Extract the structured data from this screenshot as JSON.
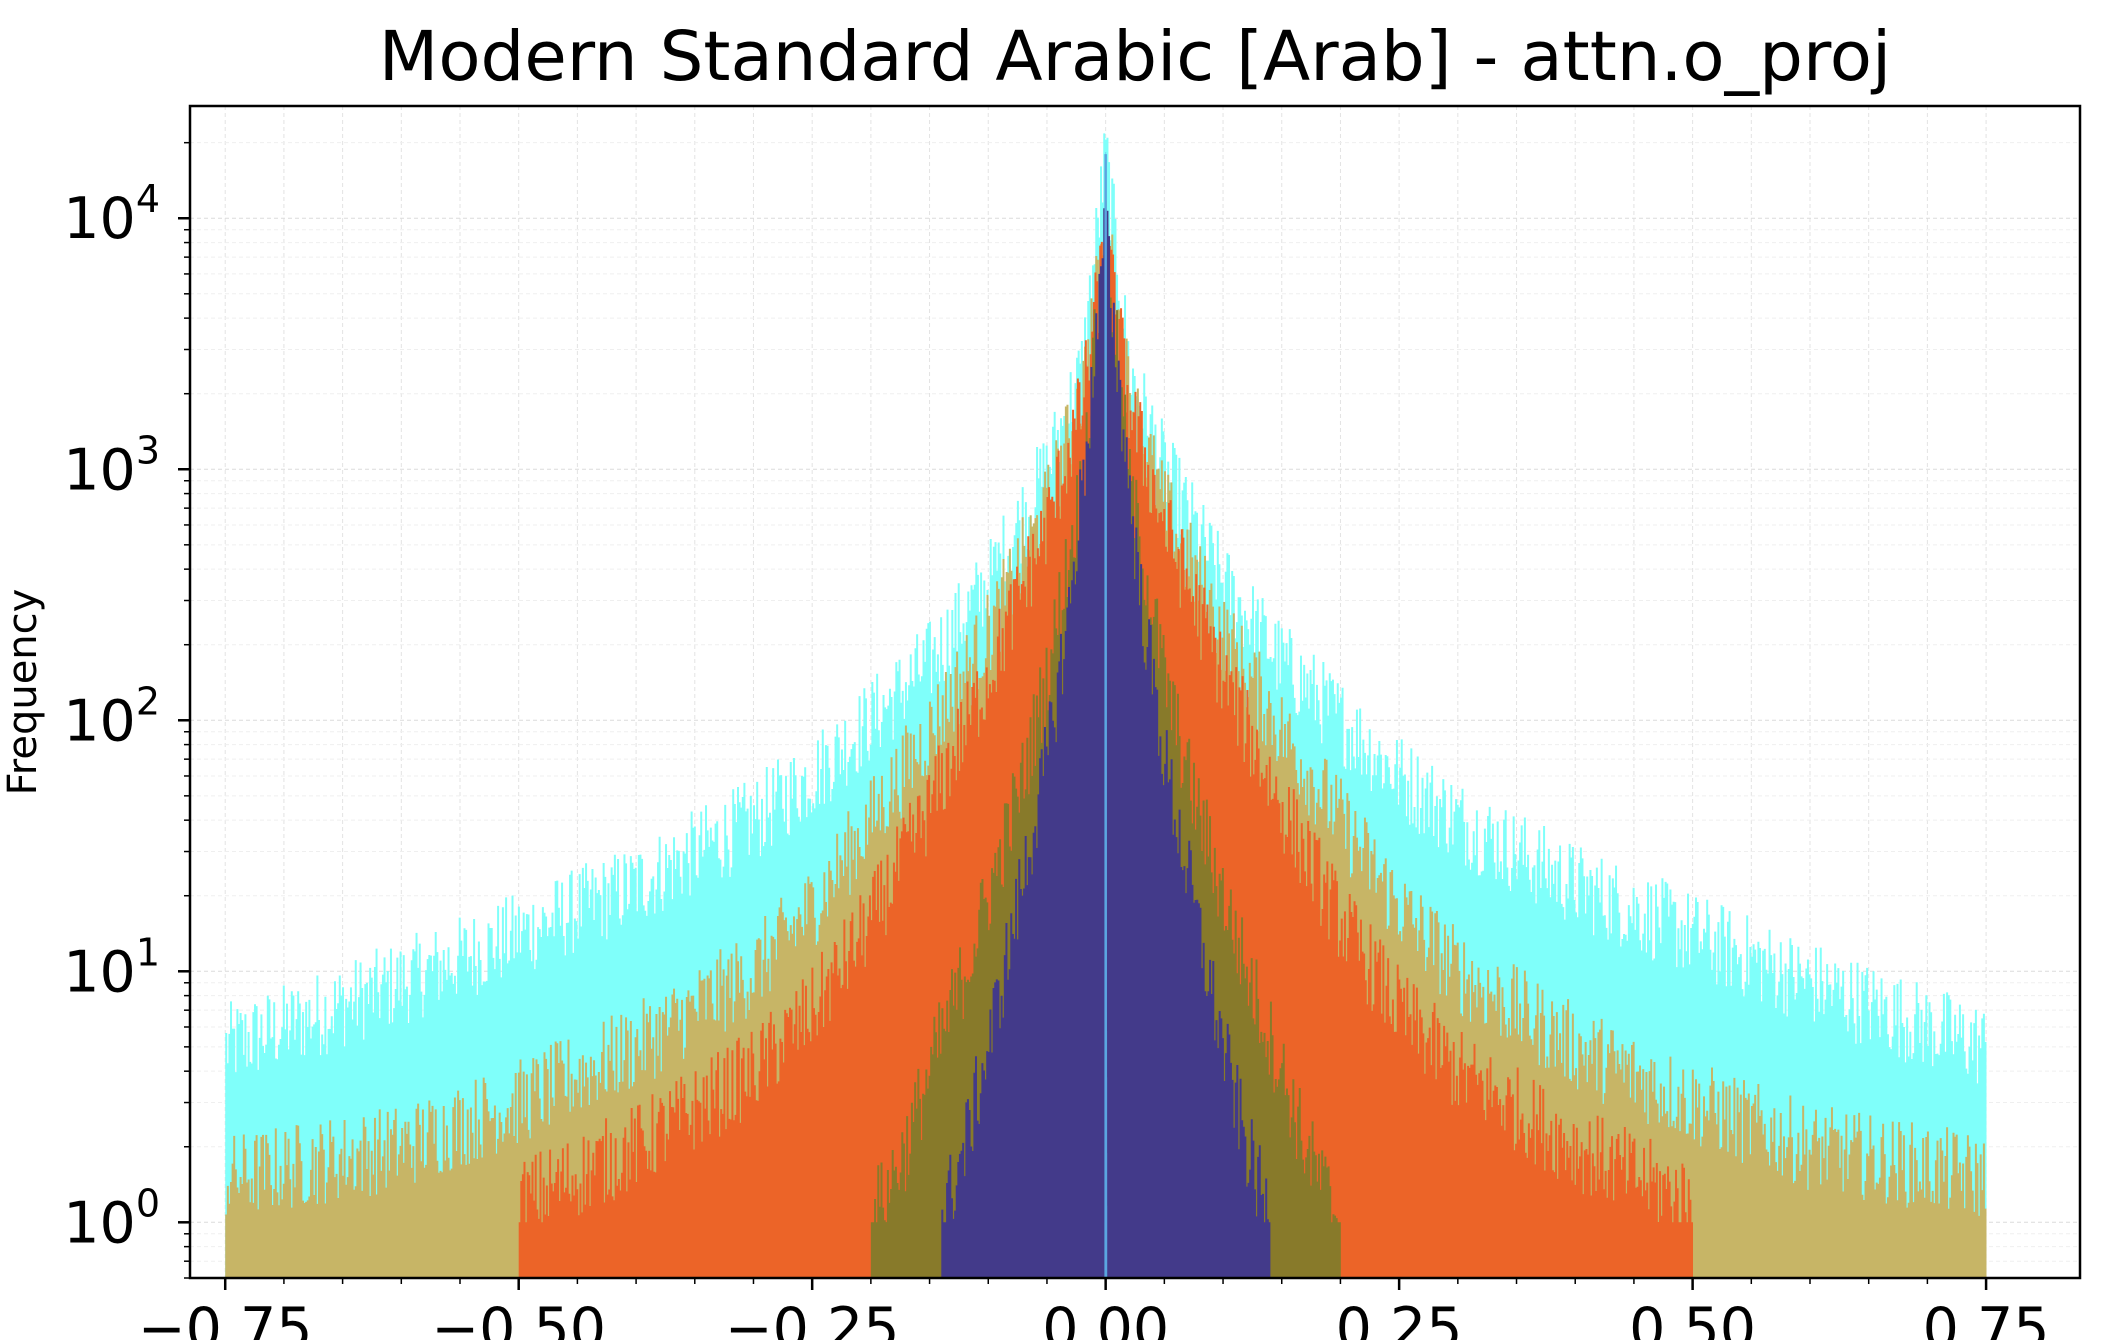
{
  "chart_data": {
    "type": "histogram",
    "title": "Modern Standard Arabic [Arab] - attn.o_proj",
    "xlabel": "",
    "ylabel": "Frequency",
    "x_scale": "linear",
    "y_scale": "log",
    "xlim": [
      -0.78,
      0.83
    ],
    "ylim": [
      0.6,
      28000
    ],
    "grid": true,
    "legend": false,
    "x_ticks": [
      {
        "value": -0.75,
        "label": "−0.75"
      },
      {
        "value": -0.5,
        "label": "−0.50"
      },
      {
        "value": -0.25,
        "label": "−0.25"
      },
      {
        "value": 0.0,
        "label": "0.00"
      },
      {
        "value": 0.25,
        "label": "0.25"
      },
      {
        "value": 0.5,
        "label": "0.50"
      },
      {
        "value": 0.75,
        "label": "0.75"
      }
    ],
    "y_ticks": [
      {
        "value": 1,
        "base": "10",
        "exp": "0"
      },
      {
        "value": 10,
        "base": "10",
        "exp": "1"
      },
      {
        "value": 100,
        "base": "10",
        "exp": "2"
      },
      {
        "value": 1000,
        "base": "10",
        "exp": "3"
      },
      {
        "value": 10000,
        "base": "10",
        "exp": "4"
      }
    ],
    "series": [
      {
        "color": "#7ffffa",
        "opacity": 1.0,
        "x": [
          -0.75,
          -0.7,
          -0.6,
          -0.5,
          -0.4,
          -0.3,
          -0.25,
          -0.2,
          -0.15,
          -0.1,
          -0.05,
          -0.02,
          0.0,
          0.02,
          0.05,
          0.1,
          0.15,
          0.2,
          0.25,
          0.3,
          0.4,
          0.5,
          0.6,
          0.7,
          0.75
        ],
        "y": [
          5,
          6,
          9,
          14,
          22,
          40,
          60,
          100,
          170,
          350,
          1000,
          2500,
          18000,
          2500,
          1000,
          350,
          170,
          100,
          60,
          40,
          22,
          14,
          9,
          6,
          5
        ]
      },
      {
        "color": "#c7b566",
        "opacity": 1.0,
        "x": [
          -0.75,
          -0.6,
          -0.5,
          -0.4,
          -0.3,
          -0.25,
          -0.2,
          -0.15,
          -0.1,
          -0.05,
          -0.02,
          0.0,
          0.02,
          0.05,
          0.1,
          0.15,
          0.2,
          0.25,
          0.3,
          0.4,
          0.5,
          0.6,
          0.75
        ],
        "y": [
          1.5,
          2,
          3,
          5,
          10,
          18,
          40,
          90,
          220,
          700,
          2000,
          9000,
          2000,
          700,
          220,
          90,
          40,
          18,
          10,
          5,
          3,
          2,
          1.5
        ]
      },
      {
        "color": "#ec6428",
        "opacity": 1.0,
        "x": [
          -0.5,
          -0.4,
          -0.3,
          -0.25,
          -0.2,
          -0.15,
          -0.1,
          -0.05,
          -0.02,
          0.0,
          0.02,
          0.05,
          0.1,
          0.15,
          0.2,
          0.25,
          0.3,
          0.4,
          0.5
        ],
        "y": [
          1.2,
          2,
          4,
          7,
          16,
          45,
          150,
          600,
          1800,
          8000,
          1800,
          600,
          150,
          45,
          16,
          7,
          4,
          2,
          1.2
        ]
      },
      {
        "color": "#887a2a",
        "opacity": 1.0,
        "x": [
          -0.2,
          -0.17,
          -0.15,
          -0.12,
          -0.1,
          -0.07,
          -0.05,
          -0.02,
          0.0,
          0.02,
          0.05,
          0.07,
          0.1,
          0.12,
          0.15,
          0.17,
          0.2
        ],
        "y": [
          1,
          2,
          4,
          10,
          20,
          60,
          150,
          900,
          8500,
          900,
          150,
          60,
          20,
          10,
          4,
          2,
          1
        ]
      },
      {
        "color": "#433a8a",
        "opacity": 1.0,
        "x": [
          -0.14,
          -0.12,
          -0.1,
          -0.08,
          -0.05,
          -0.03,
          -0.01,
          0.0,
          0.01,
          0.03,
          0.05,
          0.08,
          0.1,
          0.12,
          0.14
        ],
        "y": [
          1,
          2,
          5,
          14,
          70,
          300,
          2500,
          9000,
          2500,
          300,
          70,
          14,
          5,
          2,
          1
        ]
      },
      {
        "color": "#5ba6e0",
        "opacity": 1.0,
        "x": [
          -0.001,
          0.0,
          0.001
        ],
        "y": [
          1,
          18000,
          1
        ]
      }
    ]
  }
}
